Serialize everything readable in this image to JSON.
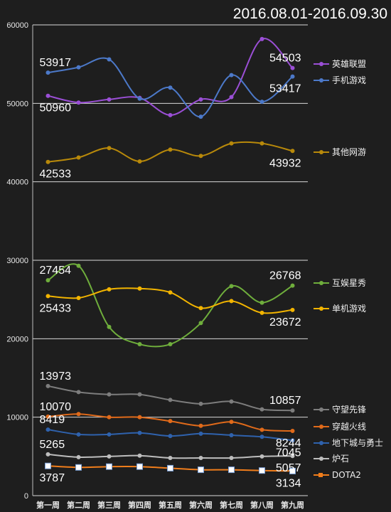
{
  "chart_data": {
    "type": "line",
    "title": "2016.08.01-2016.09.30",
    "ylim": [
      0,
      60000
    ],
    "yticks": [
      "0",
      "10000",
      "20000",
      "30000",
      "40000",
      "50000",
      "60000"
    ],
    "grid": "horizontal, every 10000",
    "legend_position": "right",
    "categories": [
      "第一周",
      "第二周",
      "第三周",
      "第四周",
      "第五周",
      "第六周",
      "第七周",
      "第八周",
      "第九周"
    ],
    "series": [
      {
        "name": "英雄联盟",
        "color": "#9b4fd6",
        "values": [
          50960,
          50100,
          50500,
          50700,
          48500,
          50500,
          50800,
          58200,
          54503
        ]
      },
      {
        "name": "手机游戏",
        "color": "#4c79c9",
        "values": [
          53917,
          54600,
          55600,
          50600,
          52000,
          48300,
          53600,
          50200,
          53417
        ]
      },
      {
        "name": "其他网游",
        "color": "#b8890a",
        "values": [
          42533,
          43100,
          44300,
          42600,
          44100,
          43300,
          44900,
          44900,
          43932
        ]
      },
      {
        "name": "互娱星秀",
        "color": "#6fae3c",
        "values": [
          27454,
          29300,
          21500,
          19300,
          19300,
          22000,
          26700,
          24600,
          26768
        ]
      },
      {
        "name": "单机游戏",
        "color": "#f2b400",
        "values": [
          25433,
          25200,
          26300,
          26400,
          25900,
          23900,
          24800,
          23300,
          23672
        ]
      },
      {
        "name": "守望先锋",
        "color": "#7d7d7d",
        "values": [
          13973,
          13200,
          12900,
          12900,
          12200,
          11700,
          12000,
          11000,
          10857
        ]
      },
      {
        "name": "穿越火线",
        "color": "#e06a1a",
        "values": [
          10070,
          10400,
          10000,
          10000,
          9500,
          8900,
          9400,
          8400,
          8244
        ]
      },
      {
        "name": "地下城与勇士",
        "color": "#2f62ad",
        "values": [
          8419,
          7800,
          7800,
          8000,
          7600,
          7900,
          7700,
          7500,
          7045
        ]
      },
      {
        "name": "炉石",
        "color": "#bdbdbd",
        "values": [
          5265,
          4900,
          5000,
          5100,
          4800,
          4800,
          4800,
          5000,
          5057
        ]
      },
      {
        "name": "DOTA2",
        "color": "#f07d1b",
        "values": [
          3787,
          3600,
          3700,
          3700,
          3500,
          3300,
          3300,
          3200,
          3134
        ]
      }
    ],
    "annotations": [
      {
        "text": "53917",
        "series": 1,
        "index": 0
      },
      {
        "text": "50960",
        "series": 0,
        "index": 0
      },
      {
        "text": "54503",
        "series": 0,
        "index": 8
      },
      {
        "text": "53417",
        "series": 1,
        "index": 8
      },
      {
        "text": "42533",
        "series": 2,
        "index": 0
      },
      {
        "text": "43932",
        "series": 2,
        "index": 8
      },
      {
        "text": "27454",
        "series": 3,
        "index": 0
      },
      {
        "text": "25433",
        "series": 4,
        "index": 0
      },
      {
        "text": "26768",
        "series": 3,
        "index": 8
      },
      {
        "text": "23672",
        "series": 4,
        "index": 8
      },
      {
        "text": "13973",
        "series": 5,
        "index": 0
      },
      {
        "text": "10070",
        "series": 6,
        "index": 0
      },
      {
        "text": "8419",
        "series": 7,
        "index": 0
      },
      {
        "text": "5265",
        "series": 8,
        "index": 0
      },
      {
        "text": "3787",
        "series": 9,
        "index": 0
      },
      {
        "text": "10857",
        "series": 5,
        "index": 8
      },
      {
        "text": "8244",
        "series": 6,
        "index": 8
      },
      {
        "text": "7045",
        "series": 7,
        "index": 8
      },
      {
        "text": "5057",
        "series": 8,
        "index": 8
      },
      {
        "text": "3134",
        "series": 9,
        "index": 8
      }
    ]
  }
}
